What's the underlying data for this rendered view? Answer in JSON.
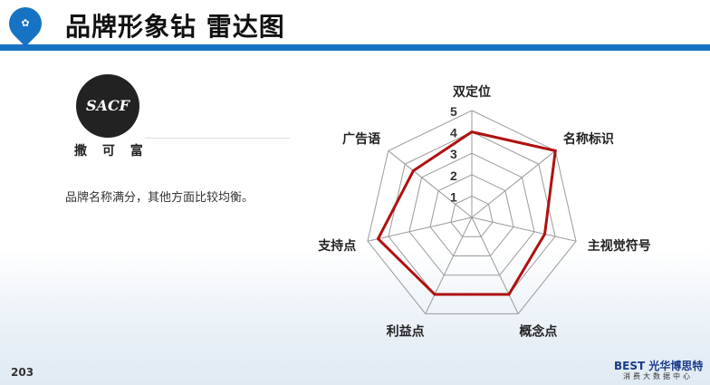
{
  "header": {
    "title": "品牌形象钻 雷达图",
    "logo_icon": "tractor-map-pin-icon",
    "accent": "#1673c3"
  },
  "brand": {
    "logo_text": "SACF",
    "name": "撒 可 富"
  },
  "description": "品牌名称满分，其他方面比较均衡。",
  "page_number": "203",
  "footer": {
    "logo": "BEST 光华博思特",
    "sub": "消费大数据中心"
  },
  "chart_data": {
    "type": "radar",
    "categories": [
      "双定位",
      "名称标识",
      "主视觉符号",
      "概念点",
      "利益点",
      "支持点",
      "广告语"
    ],
    "values": [
      4,
      5,
      3.5,
      4,
      4,
      4.5,
      3.5
    ],
    "rlim": [
      0,
      5
    ],
    "ticks": [
      "1",
      "2",
      "3",
      "4",
      "5"
    ],
    "line_color": "#b01010",
    "grid": true
  }
}
